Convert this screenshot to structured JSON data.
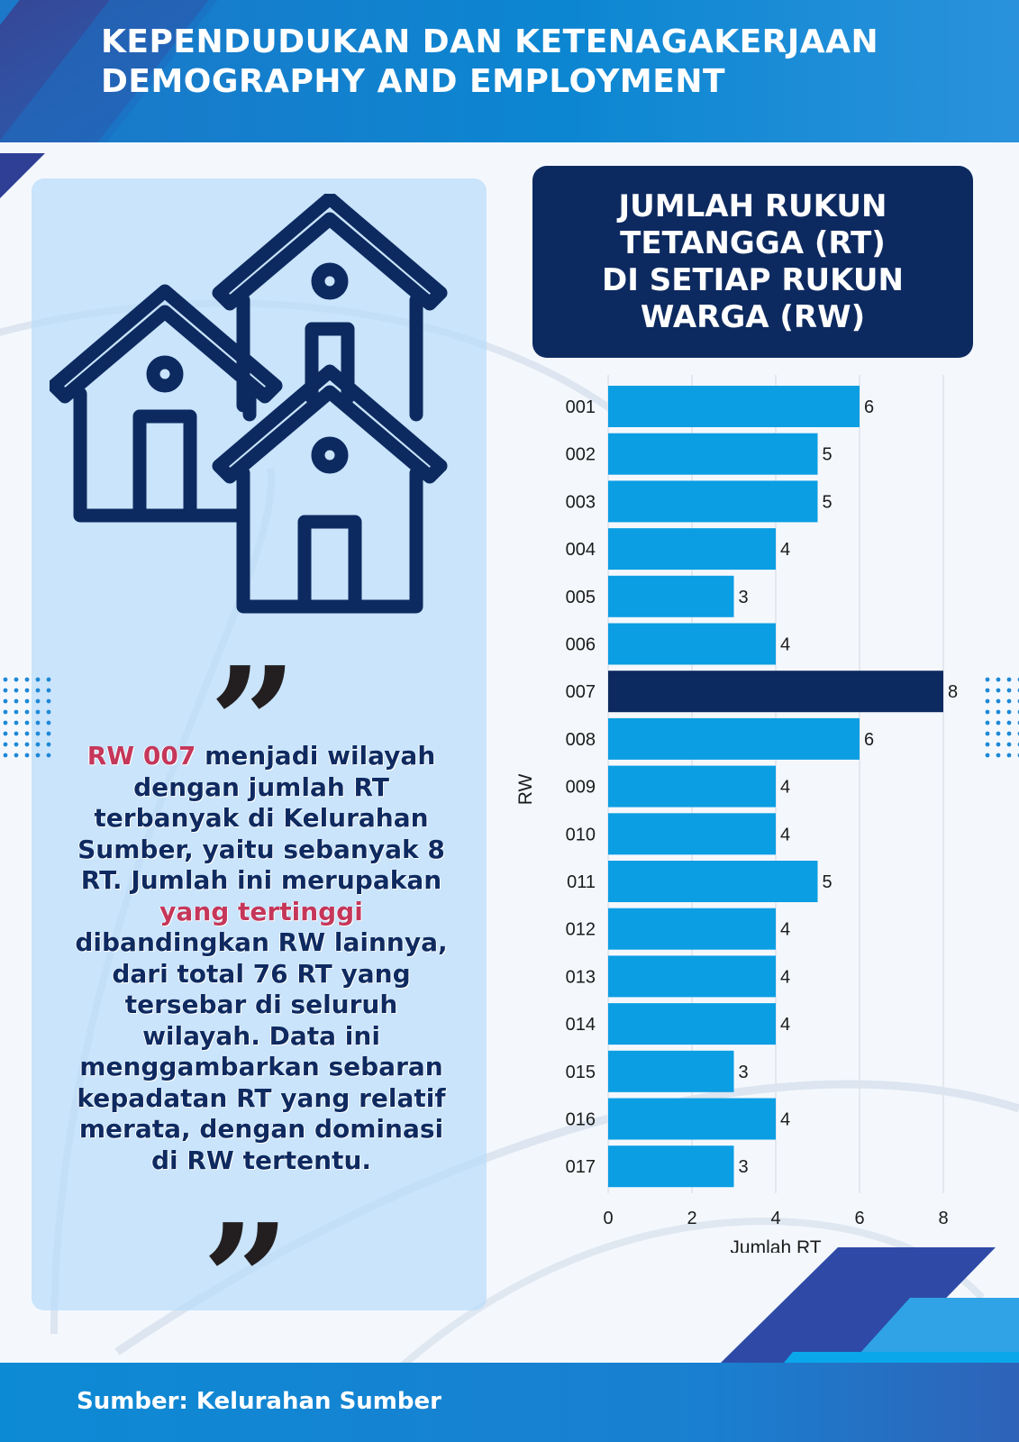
{
  "header": {
    "title_line1": "KEPENDUDUKAN DAN KETENAGAKERJAAN",
    "title_line2": "DEMOGRAPHY AND EMPLOYMENT"
  },
  "description": {
    "highlight1": "RW 007",
    "text1": " menjadi wilayah dengan jumlah RT terbanyak di Kelurahan Sumber, yaitu sebanyak 8 RT. Jumlah ini merupakan ",
    "highlight2": "yang tertinggi",
    "text2": " dibandingkan RW lainnya, dari total 76 RT yang tersebar di seluruh wilayah. Data ini menggambarkan sebaran kepadatan RT yang relatif merata, dengan dominasi di RW tertentu."
  },
  "chart_title": {
    "line1": "JUMLAH RUKUN",
    "line2": "TETANGGA (RT)",
    "line3": "DI SETIAP RUKUN",
    "line4": "WARGA (RW)"
  },
  "chart_data": {
    "type": "bar",
    "orientation": "horizontal",
    "title": "JUMLAH RUKUN TETANGGA (RT) DI SETIAP RUKUN WARGA (RW)",
    "categories": [
      "001",
      "002",
      "003",
      "004",
      "005",
      "006",
      "007",
      "008",
      "009",
      "010",
      "011",
      "012",
      "013",
      "014",
      "015",
      "016",
      "017"
    ],
    "values": [
      6,
      5,
      5,
      4,
      3,
      4,
      8,
      6,
      4,
      4,
      5,
      4,
      4,
      4,
      3,
      4,
      3
    ],
    "xlabel": "Jumlah RT",
    "ylabel": "RW",
    "xlim": [
      0,
      8
    ],
    "xticks": [
      0,
      2,
      4,
      6,
      8
    ],
    "grid": true,
    "data_labels": true,
    "colors": {
      "bar": "#0b9ee3",
      "highlight_bar": "#0d2a60",
      "highlight_category": "007"
    }
  },
  "footer": {
    "source": "Sumber: Kelurahan Sumber"
  },
  "icons": [
    "houses-icon",
    "open-quote-icon",
    "close-quote-icon"
  ]
}
